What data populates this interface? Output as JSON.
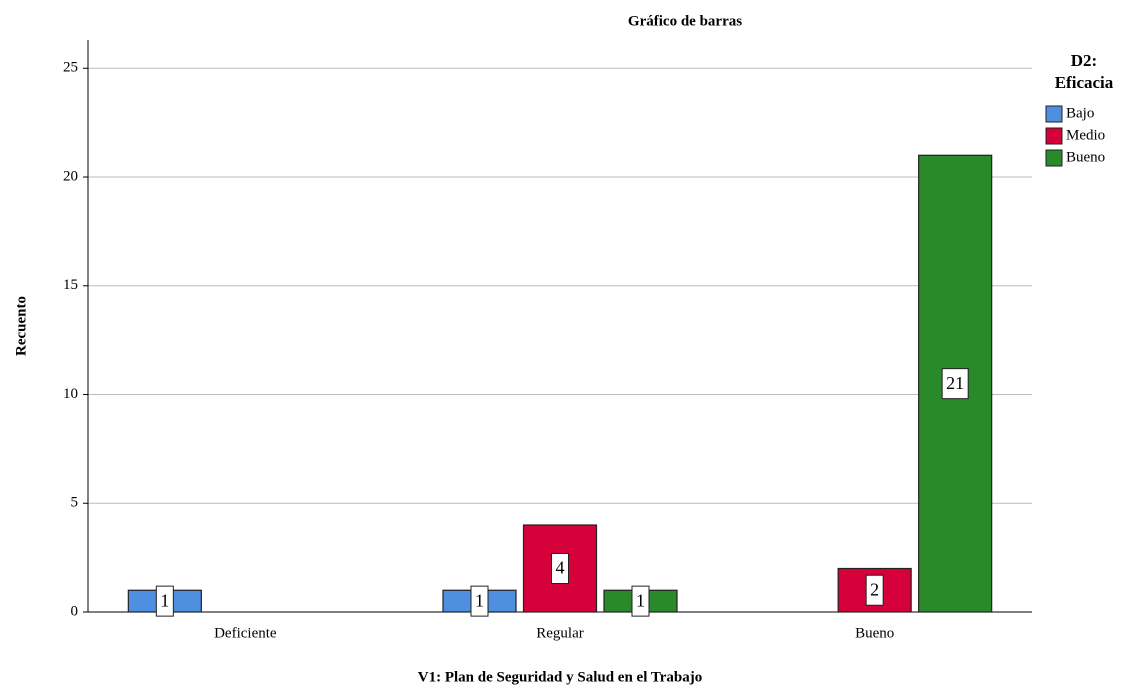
{
  "chart_data": {
    "type": "bar",
    "title": "Gráfico de barras",
    "x_label": "V1: Plan de Seguridad y Salud en el Trabajo",
    "y_label": "Recuento",
    "legend_title": [
      "D2:",
      "Eficacia"
    ],
    "categories": [
      "Deficiente",
      "Regular",
      "Bueno"
    ],
    "series": [
      {
        "name": "Bajo",
        "color": "#4f8fe0",
        "values": [
          1,
          1,
          null
        ]
      },
      {
        "name": "Medio",
        "color": "#d6003a",
        "values": [
          null,
          4,
          2
        ]
      },
      {
        "name": "Bueno",
        "color": "#2a8a2a",
        "values": [
          null,
          1,
          21
        ]
      }
    ],
    "ylim": [
      0,
      26.3
    ],
    "yticks": [
      0,
      5,
      10,
      15,
      20,
      25
    ],
    "grid": true,
    "legend": "right"
  }
}
